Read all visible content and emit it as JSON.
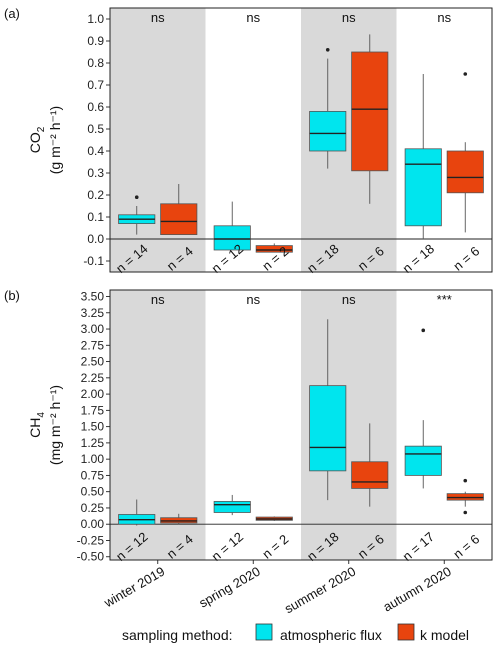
{
  "chart_data": [
    {
      "type": "box",
      "panel_label": "(a)",
      "ylabel_main": "CO",
      "ylabel_sub": "2",
      "ylabel_units": "(g m⁻² h⁻¹)",
      "ylim": [
        -0.15,
        1.05
      ],
      "yticks": [
        -0.1,
        0.0,
        0.1,
        0.2,
        0.3,
        0.4,
        0.5,
        0.6,
        0.7,
        0.8,
        0.9,
        1.0
      ],
      "ytick_labels": [
        "-0.1",
        "0.0",
        "0.1",
        "0.2",
        "0.3",
        "0.4",
        "0.5",
        "0.6",
        "0.7",
        "0.8",
        "0.9",
        "1.0"
      ],
      "significance": [
        "ns",
        "ns",
        "ns",
        "ns"
      ],
      "groups": [
        {
          "category": "winter 2019",
          "boxes": [
            {
              "method": "atmospheric flux",
              "min": 0.02,
              "q1": 0.07,
              "median": 0.09,
              "q3": 0.11,
              "max": 0.15,
              "outliers": [
                0.19
              ],
              "n_label": "n = 14"
            },
            {
              "method": "k model",
              "min": 0.02,
              "q1": 0.02,
              "median": 0.08,
              "q3": 0.16,
              "max": 0.25,
              "outliers": [],
              "n_label": "n = 4"
            }
          ]
        },
        {
          "category": "spring 2020",
          "boxes": [
            {
              "method": "atmospheric flux",
              "min": -0.05,
              "q1": -0.05,
              "median": 0.0,
              "q3": 0.06,
              "max": 0.17,
              "outliers": [],
              "n_label": "n = 12"
            },
            {
              "method": "k model",
              "min": -0.06,
              "q1": -0.06,
              "median": -0.05,
              "q3": -0.03,
              "max": -0.02,
              "outliers": [],
              "n_label": "n = 2"
            }
          ]
        },
        {
          "category": "summer 2020",
          "boxes": [
            {
              "method": "atmospheric flux",
              "min": 0.32,
              "q1": 0.4,
              "median": 0.48,
              "q3": 0.58,
              "max": 0.82,
              "outliers": [
                0.86
              ],
              "n_label": "n = 18"
            },
            {
              "method": "k model",
              "min": 0.16,
              "q1": 0.31,
              "median": 0.59,
              "q3": 0.85,
              "max": 0.93,
              "outliers": [],
              "n_label": "n = 6"
            }
          ]
        },
        {
          "category": "autumn 2020",
          "boxes": [
            {
              "method": "atmospheric flux",
              "min": 0.0,
              "q1": 0.06,
              "median": 0.34,
              "q3": 0.41,
              "max": 0.75,
              "outliers": [],
              "n_label": "n = 18"
            },
            {
              "method": "k model",
              "min": 0.03,
              "q1": 0.21,
              "median": 0.28,
              "q3": 0.4,
              "max": 0.44,
              "outliers": [
                0.75
              ],
              "n_label": "n = 6"
            }
          ]
        }
      ]
    },
    {
      "type": "box",
      "panel_label": "(b)",
      "ylabel_main": "CH",
      "ylabel_sub": "4",
      "ylabel_units": "(mg m⁻² h⁻¹)",
      "ylim": [
        -0.55,
        3.6
      ],
      "yticks": [
        -0.5,
        -0.25,
        0.0,
        0.25,
        0.5,
        0.75,
        1.0,
        1.25,
        1.5,
        1.75,
        2.0,
        2.25,
        2.5,
        2.75,
        3.0,
        3.25,
        3.5
      ],
      "ytick_labels": [
        "-0.50",
        "-0.25",
        "0.00",
        "0.25",
        "0.50",
        "0.75",
        "1.00",
        "1.25",
        "1.50",
        "1.75",
        "2.00",
        "2.25",
        "2.50",
        "2.75",
        "3.00",
        "3.25",
        "3.50"
      ],
      "significance": [
        "ns",
        "ns",
        "ns",
        "***"
      ],
      "groups": [
        {
          "category": "winter 2019",
          "boxes": [
            {
              "method": "atmospheric flux",
              "min": -0.02,
              "q1": 0.0,
              "median": 0.07,
              "q3": 0.15,
              "max": 0.38,
              "outliers": [],
              "n_label": "n = 12"
            },
            {
              "method": "k model",
              "min": 0.0,
              "q1": 0.02,
              "median": 0.05,
              "q3": 0.1,
              "max": 0.16,
              "outliers": [],
              "n_label": "n = 4"
            }
          ]
        },
        {
          "category": "spring 2020",
          "boxes": [
            {
              "method": "atmospheric flux",
              "min": 0.14,
              "q1": 0.18,
              "median": 0.3,
              "q3": 0.35,
              "max": 0.45,
              "outliers": [],
              "n_label": "n = 12"
            },
            {
              "method": "k model",
              "min": 0.05,
              "q1": 0.06,
              "median": 0.08,
              "q3": 0.11,
              "max": 0.12,
              "outliers": [],
              "n_label": "n = 2"
            }
          ]
        },
        {
          "category": "summer 2020",
          "boxes": [
            {
              "method": "atmospheric flux",
              "min": 0.37,
              "q1": 0.82,
              "median": 1.18,
              "q3": 2.13,
              "max": 3.15,
              "outliers": [],
              "n_label": "n = 18"
            },
            {
              "method": "k model",
              "min": 0.27,
              "q1": 0.55,
              "median": 0.65,
              "q3": 0.96,
              "max": 1.55,
              "outliers": [],
              "n_label": "n = 6"
            }
          ]
        },
        {
          "category": "autumn 2020",
          "boxes": [
            {
              "method": "atmospheric flux",
              "min": 0.55,
              "q1": 0.75,
              "median": 1.08,
              "q3": 1.2,
              "max": 1.6,
              "outliers": [
                2.98
              ],
              "n_label": "n = 17"
            },
            {
              "method": "k model",
              "min": 0.27,
              "q1": 0.37,
              "median": 0.41,
              "q3": 0.47,
              "max": 0.5,
              "outliers": [
                0.18,
                0.67
              ],
              "n_label": "n = 6"
            }
          ]
        }
      ]
    }
  ],
  "categories": [
    "winter 2019",
    "spring 2020",
    "summer 2020",
    "autumn 2020"
  ],
  "shaded_categories": [
    "winter 2019",
    "summer 2020"
  ],
  "legend": {
    "title": "sampling method:",
    "items": [
      {
        "label": "atmospheric flux",
        "color": "#00e5ee"
      },
      {
        "label": "k model",
        "color": "#e8440e"
      }
    ]
  },
  "colors": {
    "atmospheric flux": "#00e5ee",
    "k model": "#e8440e",
    "shade": "#d9d9d9"
  }
}
